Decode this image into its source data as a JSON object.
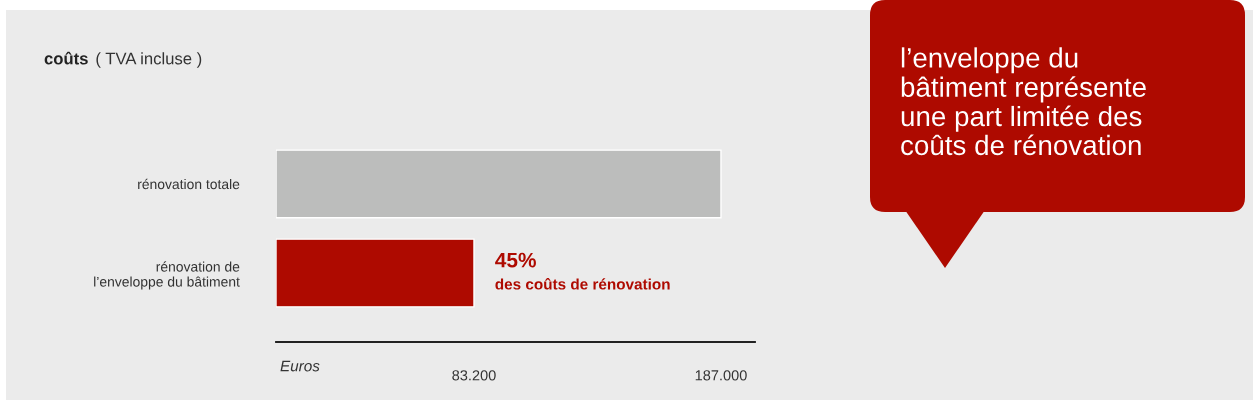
{
  "chart_data": {
    "type": "bar",
    "orientation": "horizontal",
    "title": "coûts",
    "subtitle": "( TVA incluse )",
    "xlabel": "Euros",
    "categories": [
      "rénovation totale",
      "rénovation de\nl’enveloppe du bâtiment"
    ],
    "values": [
      187000,
      83200
    ],
    "colors": [
      "#bcbdbc",
      "#ae0a00"
    ],
    "xlim": [
      0,
      201300
    ],
    "xticks": [
      {
        "value": 83200,
        "label": "83.200"
      },
      {
        "value": 187000,
        "label": "187.000"
      }
    ],
    "grid": false,
    "legend": false,
    "annotations": [
      {
        "text": "45%",
        "x": 83200,
        "y": "rénovation de\nl’enveloppe du bâtiment"
      },
      {
        "text": "des coûts de rénovation",
        "x": 83200,
        "y": "rénovation de\nl’enveloppe du bâtiment"
      },
      "l’enveloppe du\nbâtiment représente\nune part limitée des\ncoûts de rénovation"
    ]
  }
}
